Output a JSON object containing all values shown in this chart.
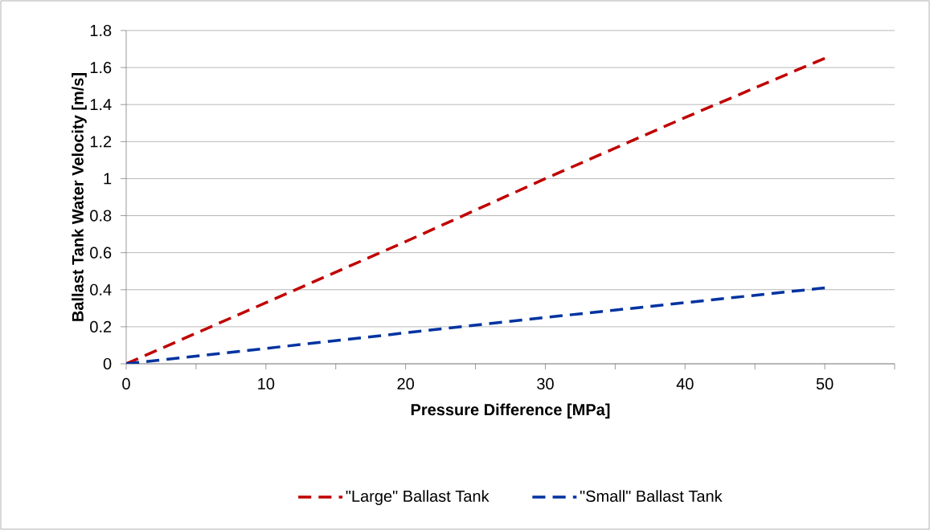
{
  "chart_data": {
    "type": "line",
    "xlabel": "Pressure Difference [MPa]",
    "ylabel": "Ballast Tank Water Velocity [m/s]",
    "x": [
      0,
      10,
      20,
      30,
      40,
      50
    ],
    "series": [
      {
        "name": "\"Large\" Ballast Tank",
        "color": "#c00000",
        "values": [
          0,
          0.33,
          0.66,
          1.0,
          1.33,
          1.65
        ]
      },
      {
        "name": "\"Small\" Ballast Tank",
        "color": "#0033a0",
        "values": [
          0,
          0.083,
          0.167,
          0.25,
          0.33,
          0.41
        ]
      }
    ],
    "xlim": [
      0,
      55
    ],
    "ylim": [
      0,
      1.8
    ],
    "xticks": [
      0,
      {
        "value": 5,
        "label": null
      },
      10,
      {
        "value": 15,
        "label": null
      },
      20,
      {
        "value": 25,
        "label": null
      },
      30,
      {
        "value": 35,
        "label": null
      },
      40,
      {
        "value": 45,
        "label": null
      },
      50,
      {
        "value": 55,
        "label": null
      }
    ],
    "yticks": [
      0,
      0.2,
      0.4,
      0.6,
      0.8,
      1,
      1.2,
      1.4,
      1.6,
      1.8
    ],
    "grid": "y",
    "legend": "bottom",
    "line_style": "dashed",
    "marker": "none"
  }
}
